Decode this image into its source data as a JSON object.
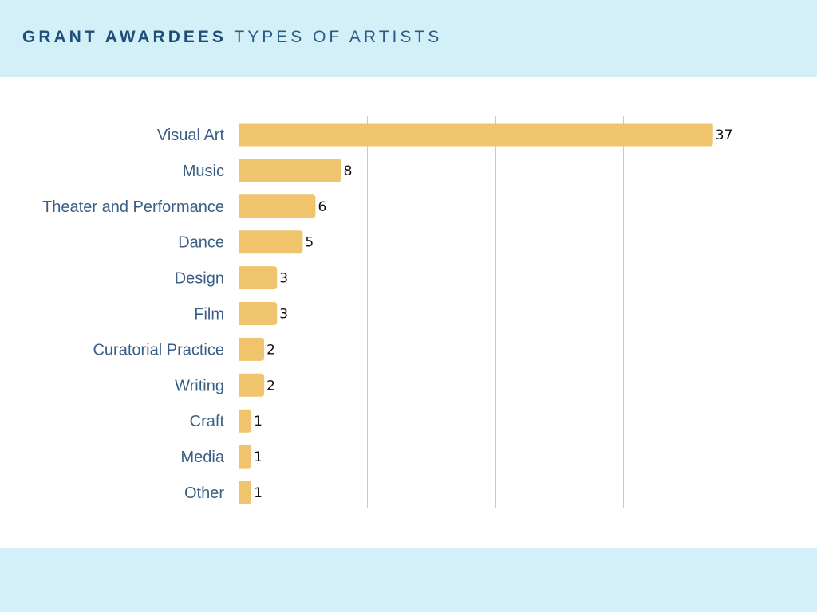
{
  "header": {
    "title_bold": "GRANT AWARDEES",
    "title_light": "TYPES OF ARTISTS"
  },
  "colors": {
    "band": "#d3f0f8",
    "bar": "#f0c46c",
    "title": "#1f4e79",
    "category_text": "#3a5f86",
    "gridline": "#c8c8c8"
  },
  "chart_data": {
    "type": "bar",
    "orientation": "horizontal",
    "categories": [
      "Visual Art",
      "Music",
      "Theater and Performance",
      "Dance",
      "Design",
      "Film",
      "Curatorial Practice",
      "Writing",
      "Craft",
      "Media",
      "Other"
    ],
    "values": [
      37,
      8,
      6,
      5,
      3,
      3,
      2,
      2,
      1,
      1,
      1
    ],
    "xlim": [
      0,
      40
    ],
    "grid": true,
    "data_labels": true,
    "title": "",
    "xlabel": "",
    "ylabel": ""
  }
}
